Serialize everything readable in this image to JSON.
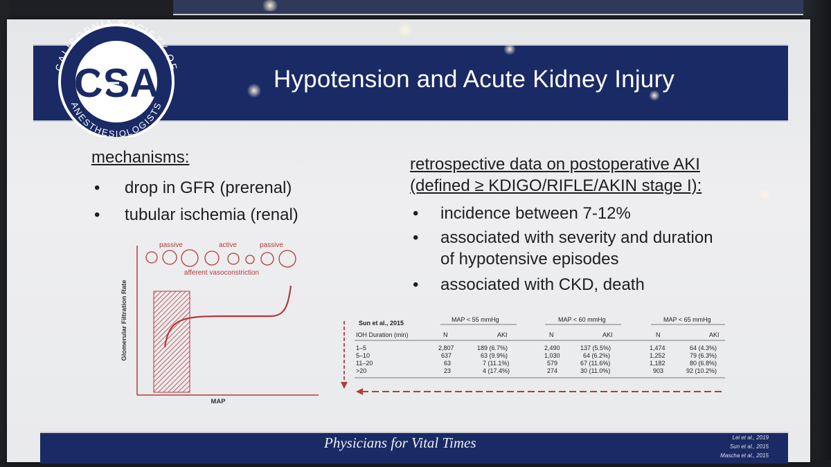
{
  "slide": {
    "title": "Hypotension and Acute Kidney Injury",
    "logo": {
      "ring_text": "CALIFORNIA SOCIETY OF ANESTHESIOLOGISTS",
      "monogram": "CSA"
    },
    "left_column": {
      "heading": "mechanisms:",
      "items": [
        "drop in GFR (prerenal)",
        "tubular ischemia (renal)"
      ]
    },
    "right_column": {
      "heading_line1": "retrospective data on postoperative AKI",
      "heading_line2": "(defined ≥ KDIGO/RIFLE/AKIN stage I):",
      "items": [
        [
          "incidence between 7-12%"
        ],
        [
          "associated with severity and duration",
          "of hypotensive episodes"
        ],
        [
          "associated with CKD, death"
        ]
      ]
    },
    "bullet_char": "•",
    "diagram": {
      "y_label": "Glomerular Filtration Rate",
      "x_label": "MAP",
      "labels": [
        "passive",
        "active",
        "passive"
      ],
      "caption": "afferent vasoconstriction",
      "accent_color": "#b53a3a"
    },
    "table": {
      "study": "Sun et al., 2015",
      "group_headers": [
        "MAP < 55 mmHg",
        "MAP < 60 mmHg",
        "MAP < 65 mmHg"
      ],
      "row_header": "IOH Duration (min)",
      "sub_headers": [
        "N",
        "AKI",
        "N",
        "AKI",
        "N",
        "AKI"
      ],
      "rows": [
        [
          "1–5",
          "2,807",
          "189 (6.7%)",
          "2,490",
          "137 (5.5%)",
          "1,474",
          "64 (4.3%)"
        ],
        [
          "5–10",
          "637",
          "63 (9.9%)",
          "1,030",
          "64 (6.2%)",
          "1,252",
          "79 (6.3%)"
        ],
        [
          "11–20",
          "63",
          "7 (11.1%)",
          "579",
          "67 (11.6%)",
          "1,182",
          "80 (6.8%)"
        ],
        [
          ">20",
          "23",
          "4 (17.4%)",
          "274",
          "30 (11.0%)",
          "903",
          "92 (10.2%)"
        ]
      ]
    },
    "footer": {
      "tagline": "Physicians for Vital Times",
      "references": [
        "Lei et al., 2019",
        "Sun et al., 2015",
        "Mascha et al., 2015"
      ]
    },
    "colors": {
      "navy": "#1a2a64",
      "slide_bg": "#e9eaec",
      "text": "#1e1e1e",
      "accent_red": "#b53a3a"
    }
  }
}
